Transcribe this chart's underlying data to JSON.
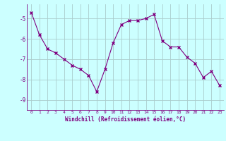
{
  "x": [
    0,
    1,
    2,
    3,
    4,
    5,
    6,
    7,
    8,
    9,
    10,
    11,
    12,
    13,
    14,
    15,
    16,
    17,
    18,
    19,
    20,
    21,
    22,
    23
  ],
  "y": [
    -4.7,
    -5.8,
    -6.5,
    -6.7,
    -7.0,
    -7.3,
    -7.5,
    -7.8,
    -8.6,
    -7.5,
    -6.2,
    -5.3,
    -5.1,
    -5.1,
    -5.0,
    -4.8,
    -6.1,
    -6.4,
    -6.4,
    -6.9,
    -7.2,
    -7.9,
    -7.6,
    -8.3
  ],
  "line_color": "#800080",
  "marker": "x",
  "marker_size": 3,
  "bg_color": "#ccffff",
  "grid_color": "#aacccc",
  "xlabel": "Windchill (Refroidissement éolien,°C)",
  "xlabel_color": "#800080",
  "tick_color": "#800080",
  "ylim": [
    -9.5,
    -4.3
  ],
  "xlim": [
    -0.5,
    23.5
  ],
  "yticks": [
    -9,
    -8,
    -7,
    -6,
    -5
  ],
  "xticks": [
    0,
    1,
    2,
    3,
    4,
    5,
    6,
    7,
    8,
    9,
    10,
    11,
    12,
    13,
    14,
    15,
    16,
    17,
    18,
    19,
    20,
    21,
    22,
    23
  ]
}
